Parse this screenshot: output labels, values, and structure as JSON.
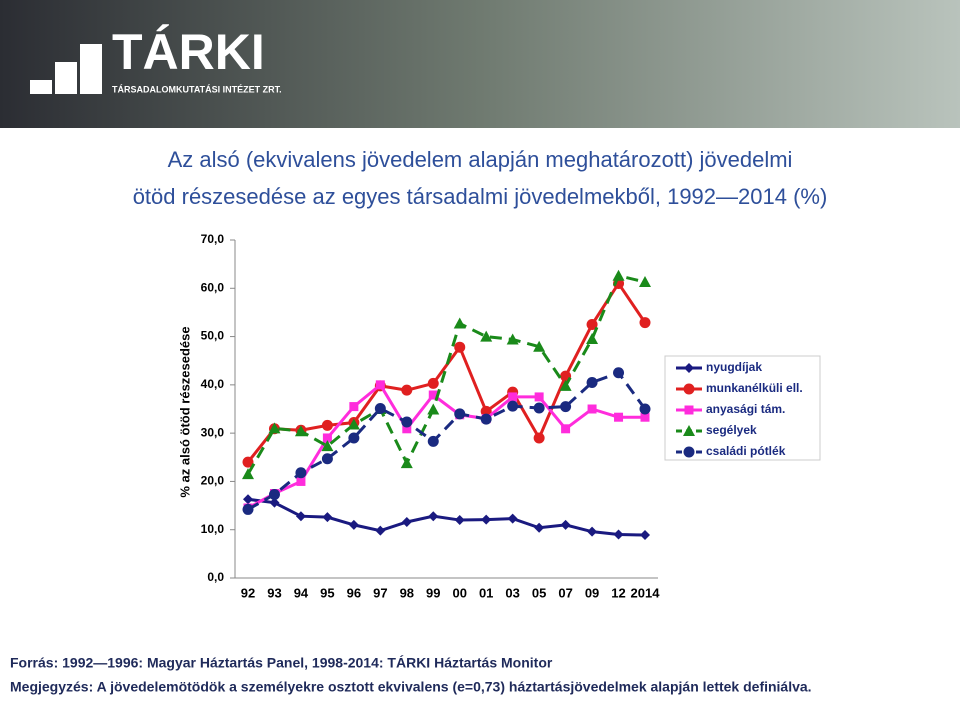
{
  "header": {
    "logo": "TÁRKI",
    "tagline": "TÁRSADALOMKUTATÁSI INTÉZET ZRT."
  },
  "chart_data": {
    "type": "line",
    "title": [
      "Az alsó (ekvivalens jövedelem alapján meghatározott) jövedelmi",
      "ötöd részesedése az egyes társadalmi jövedelmekből, 1992—2014 (%)"
    ],
    "y_label": "% az alsó ötöd részesedése",
    "categories": [
      "92",
      "93",
      "94",
      "95",
      "96",
      "97",
      "98",
      "99",
      "00",
      "01",
      "03",
      "05",
      "07",
      "09",
      "12",
      "2014"
    ],
    "ylim": [
      0,
      70
    ],
    "yticks": [
      {
        "value": 0,
        "label": "0,0"
      },
      {
        "value": 10,
        "label": "10,0"
      },
      {
        "value": 20,
        "label": "20,0"
      },
      {
        "value": 30,
        "label": "30,0"
      },
      {
        "value": 40,
        "label": "40,0"
      },
      {
        "value": 50,
        "label": "50,0"
      },
      {
        "value": 60,
        "label": "60,0"
      },
      {
        "value": 70,
        "label": "70,0"
      }
    ],
    "legend": "right",
    "series": [
      {
        "name": "nyugdíjak",
        "color": "#1a1a80",
        "dash": false,
        "marker": "diamond",
        "values": [
          16.3,
          15.6,
          12.8,
          12.6,
          11.0,
          9.8,
          11.6,
          12.8,
          12.0,
          12.1,
          12.3,
          10.4,
          11.0,
          9.6,
          9.0,
          8.9
        ]
      },
      {
        "name": "munkanélküli ell.",
        "color": "#e02020",
        "dash": false,
        "marker": "circle",
        "values": [
          24.0,
          30.9,
          30.6,
          31.6,
          32.2,
          39.8,
          38.9,
          40.3,
          47.8,
          34.5,
          38.5,
          29.0,
          41.8,
          52.5,
          61.0,
          52.9
        ]
      },
      {
        "name": "anyasági tám.",
        "color": "#ff2cdc",
        "dash": false,
        "marker": "square",
        "values": [
          14.5,
          17.5,
          20.0,
          29.0,
          35.5,
          40.0,
          30.9,
          37.9,
          33.8,
          33.0,
          37.5,
          37.5,
          30.9,
          35.0,
          33.3,
          33.3
        ]
      },
      {
        "name": "segélyek",
        "color": "#1a8a1a",
        "dash": true,
        "marker": "triangle",
        "values": [
          21.5,
          31.0,
          30.4,
          27.3,
          31.8,
          35.0,
          23.8,
          34.9,
          52.7,
          50.0,
          49.4,
          47.9,
          39.8,
          49.5,
          62.6,
          61.3
        ]
      },
      {
        "name": "családi pótlék",
        "color": "#1a2a80",
        "dash": true,
        "marker": "circle",
        "values": [
          14.2,
          17.3,
          21.8,
          24.7,
          29.0,
          35.1,
          32.3,
          28.3,
          34.0,
          32.9,
          35.6,
          35.2,
          35.5,
          40.5,
          42.5,
          35.0
        ]
      }
    ]
  },
  "footer": {
    "source": "Forrás: 1992—1996: Magyar Háztartás Panel, 1998-2014: TÁRKI Háztartás Monitor",
    "note": "Megjegyzés: A jövedelemötödök a személyekre osztott ekvivalens (e=0,73) háztartásjövedelmek alapján lettek definiálva."
  }
}
